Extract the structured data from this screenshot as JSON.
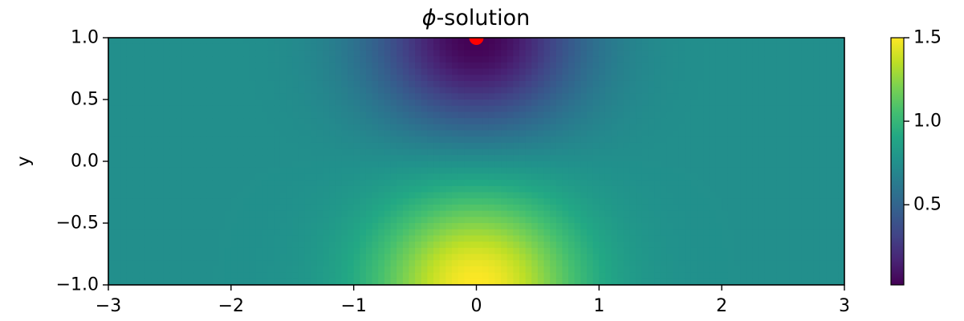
{
  "chart_data": {
    "type": "heatmap",
    "title_symbol": "ϕ",
    "title_text": "-solution",
    "xlabel": "",
    "ylabel": "y",
    "xlim": [
      -3,
      3
    ],
    "ylim": [
      -1,
      1
    ],
    "x_ticks": [
      -3,
      -2,
      -1,
      0,
      1,
      2,
      3
    ],
    "x_tick_labels": [
      "−3",
      "−2",
      "−1",
      "0",
      "1",
      "2",
      "3"
    ],
    "y_ticks": [
      1.0,
      0.5,
      0.0,
      -0.5,
      -1.0
    ],
    "y_tick_labels": [
      "1.0",
      "0.5",
      "0.0",
      "−0.5",
      "−1.0"
    ],
    "colorbar": {
      "colormap": "viridis",
      "range": [
        0.02,
        1.5
      ],
      "ticks": [
        1.5,
        1.0,
        0.5
      ],
      "tick_labels": [
        "1.5",
        "1.0",
        "0.5"
      ]
    },
    "background_value": 0.75,
    "source_point": {
      "x": 0,
      "y": 1,
      "color": "#ff0000"
    },
    "field_features": [
      {
        "kind": "minimum",
        "x": 0,
        "y": 1,
        "value": 0.02
      },
      {
        "kind": "maximum",
        "x": 0,
        "y": -1,
        "value": 1.5
      }
    ],
    "grid": false
  }
}
